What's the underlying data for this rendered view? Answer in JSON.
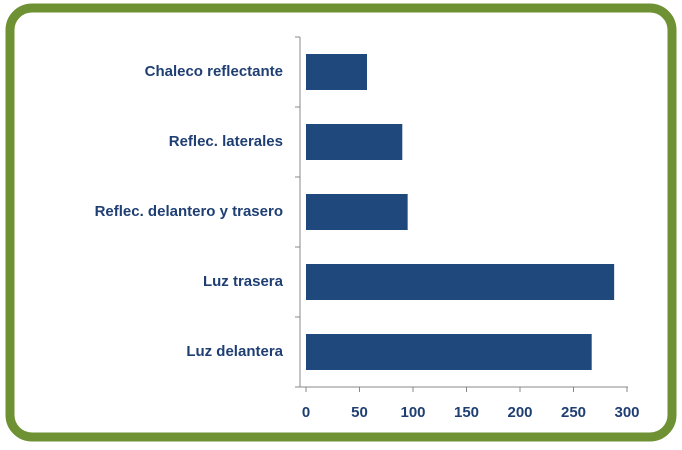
{
  "chart_data": {
    "type": "bar",
    "orientation": "horizontal",
    "categories": [
      "Chaleco reflectante",
      "Reflec. laterales",
      "Reflec. delantero y trasero",
      "Luz trasera",
      "Luz delantera"
    ],
    "values": [
      57,
      90,
      95,
      288,
      267
    ],
    "color": "#1f497d",
    "xlim": [
      0,
      300
    ],
    "xticks": [
      0,
      50,
      100,
      150,
      200,
      250,
      300
    ],
    "grid": false
  }
}
